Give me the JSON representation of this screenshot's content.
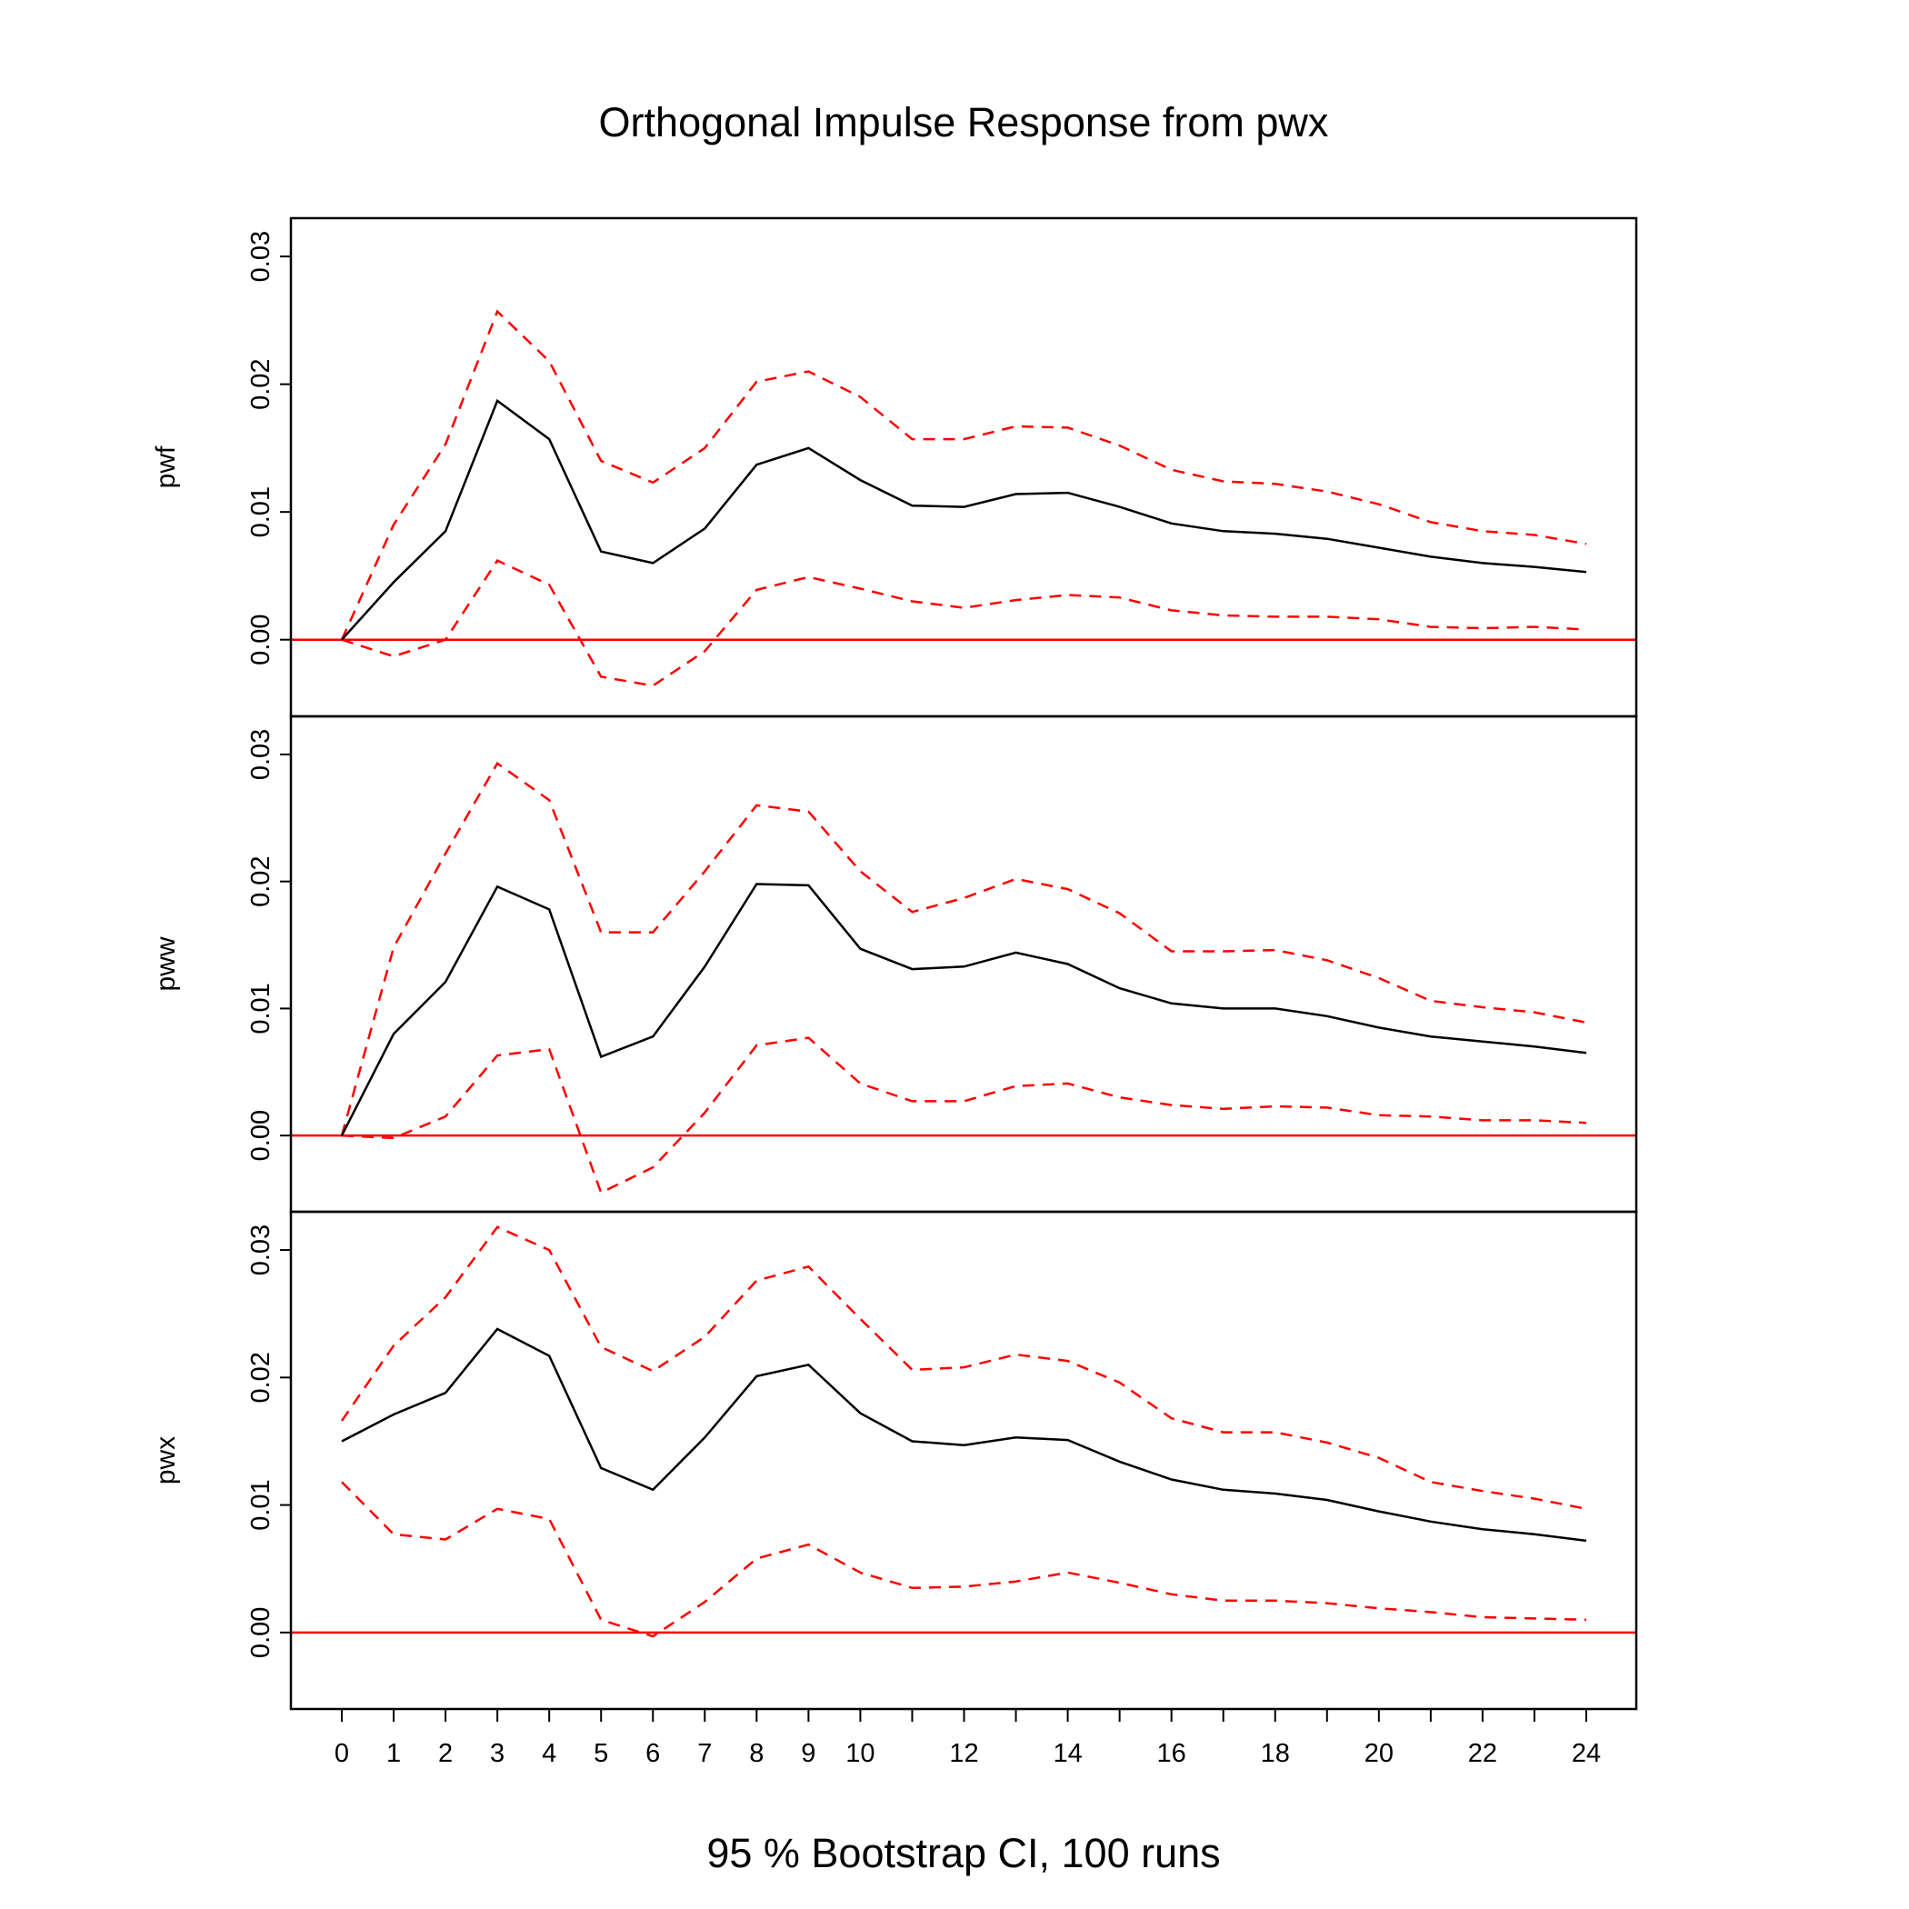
{
  "chart_data": {
    "type": "line",
    "title": "Orthogonal Impulse Response from pwx",
    "footer": "95 % Bootstrap CI,  100 runs",
    "x": [
      0,
      1,
      2,
      3,
      4,
      5,
      6,
      7,
      8,
      9,
      10,
      11,
      12,
      13,
      14,
      15,
      16,
      17,
      18,
      19,
      20,
      21,
      22,
      23,
      24
    ],
    "x_tick_labels": [
      "0",
      "1",
      "2",
      "3",
      "4",
      "5",
      "6",
      "7",
      "8",
      "9",
      "10",
      "12",
      "14",
      "16",
      "18",
      "20",
      "22",
      "24"
    ],
    "x_tick_values": [
      0,
      1,
      2,
      3,
      4,
      5,
      6,
      7,
      8,
      9,
      10,
      12,
      14,
      16,
      18,
      20,
      22,
      24
    ],
    "x_minor_ticks": [
      11,
      13,
      15,
      17,
      19,
      21,
      23
    ],
    "ylim": [
      -0.006,
      0.033
    ],
    "y_ticks": [
      0.0,
      0.01,
      0.02,
      0.03
    ],
    "y_tick_labels": [
      "0.00",
      "0.01",
      "0.02",
      "0.03"
    ],
    "zero_line_color": "#ff0000",
    "response_color": "#000000",
    "ci_color": "#ff0000",
    "ci_style": "dashed",
    "panels": [
      {
        "ylabel": "pwf",
        "response": [
          0.0,
          0.0045,
          0.0085,
          0.0187,
          0.0157,
          0.0069,
          0.006,
          0.0087,
          0.0137,
          0.015,
          0.0125,
          0.0105,
          0.0104,
          0.0114,
          0.0115,
          0.0104,
          0.0091,
          0.0085,
          0.0083,
          0.0079,
          0.0072,
          0.0065,
          0.006,
          0.0057,
          0.0053
        ],
        "upper": [
          0.0,
          0.009,
          0.0153,
          0.0257,
          0.0218,
          0.014,
          0.0123,
          0.015,
          0.0202,
          0.021,
          0.019,
          0.0157,
          0.0157,
          0.0167,
          0.0166,
          0.0152,
          0.0133,
          0.0124,
          0.0122,
          0.0116,
          0.0106,
          0.0092,
          0.0085,
          0.0082,
          0.0075
        ],
        "lower": [
          0.0,
          -0.0013,
          0.0,
          0.0062,
          0.0043,
          -0.0029,
          -0.0036,
          -0.0009,
          0.0039,
          0.0049,
          0.004,
          0.003,
          0.0025,
          0.0031,
          0.0035,
          0.0033,
          0.0023,
          0.0019,
          0.0018,
          0.0018,
          0.0016,
          0.001,
          0.0009,
          0.001,
          0.0008
        ]
      },
      {
        "ylabel": "pww",
        "response": [
          0.0,
          0.008,
          0.0121,
          0.0196,
          0.0178,
          0.0062,
          0.0078,
          0.0133,
          0.0198,
          0.0197,
          0.0147,
          0.0131,
          0.0133,
          0.0144,
          0.0135,
          0.0116,
          0.0104,
          0.01,
          0.01,
          0.0094,
          0.0085,
          0.0078,
          0.0074,
          0.007,
          0.0065
        ],
        "upper": [
          0.0,
          0.0148,
          0.0222,
          0.0293,
          0.0264,
          0.016,
          0.016,
          0.0208,
          0.026,
          0.0255,
          0.0208,
          0.0176,
          0.0187,
          0.0202,
          0.0194,
          0.0175,
          0.0145,
          0.0145,
          0.0146,
          0.0138,
          0.0124,
          0.0106,
          0.0101,
          0.0097,
          0.0089
        ],
        "lower": [
          0.0,
          -0.0002,
          0.0015,
          0.0063,
          0.0068,
          -0.0045,
          -0.0025,
          0.0018,
          0.0071,
          0.0077,
          0.0041,
          0.0027,
          0.0027,
          0.0039,
          0.0041,
          0.003,
          0.0024,
          0.0021,
          0.0023,
          0.0022,
          0.0016,
          0.0015,
          0.0012,
          0.0012,
          0.001
        ]
      },
      {
        "ylabel": "pwx",
        "response": [
          0.015,
          0.0171,
          0.0188,
          0.0238,
          0.0217,
          0.0129,
          0.0112,
          0.0153,
          0.0201,
          0.021,
          0.0172,
          0.015,
          0.0147,
          0.0153,
          0.0151,
          0.0134,
          0.012,
          0.0112,
          0.0109,
          0.0104,
          0.0095,
          0.0087,
          0.0081,
          0.0077,
          0.0072
        ],
        "upper": [
          0.0166,
          0.0225,
          0.0263,
          0.0318,
          0.03,
          0.0224,
          0.0205,
          0.0232,
          0.0276,
          0.0287,
          0.0246,
          0.0206,
          0.0208,
          0.0218,
          0.0213,
          0.0196,
          0.0168,
          0.0157,
          0.0157,
          0.0149,
          0.0137,
          0.0118,
          0.0111,
          0.0105,
          0.0097
        ],
        "lower": [
          0.0118,
          0.0077,
          0.0073,
          0.0097,
          0.0089,
          0.001,
          -0.0003,
          0.0024,
          0.0058,
          0.0069,
          0.0047,
          0.0035,
          0.0036,
          0.004,
          0.0047,
          0.0039,
          0.003,
          0.0025,
          0.0025,
          0.0023,
          0.0019,
          0.0016,
          0.0012,
          0.0011,
          0.001
        ]
      }
    ]
  }
}
